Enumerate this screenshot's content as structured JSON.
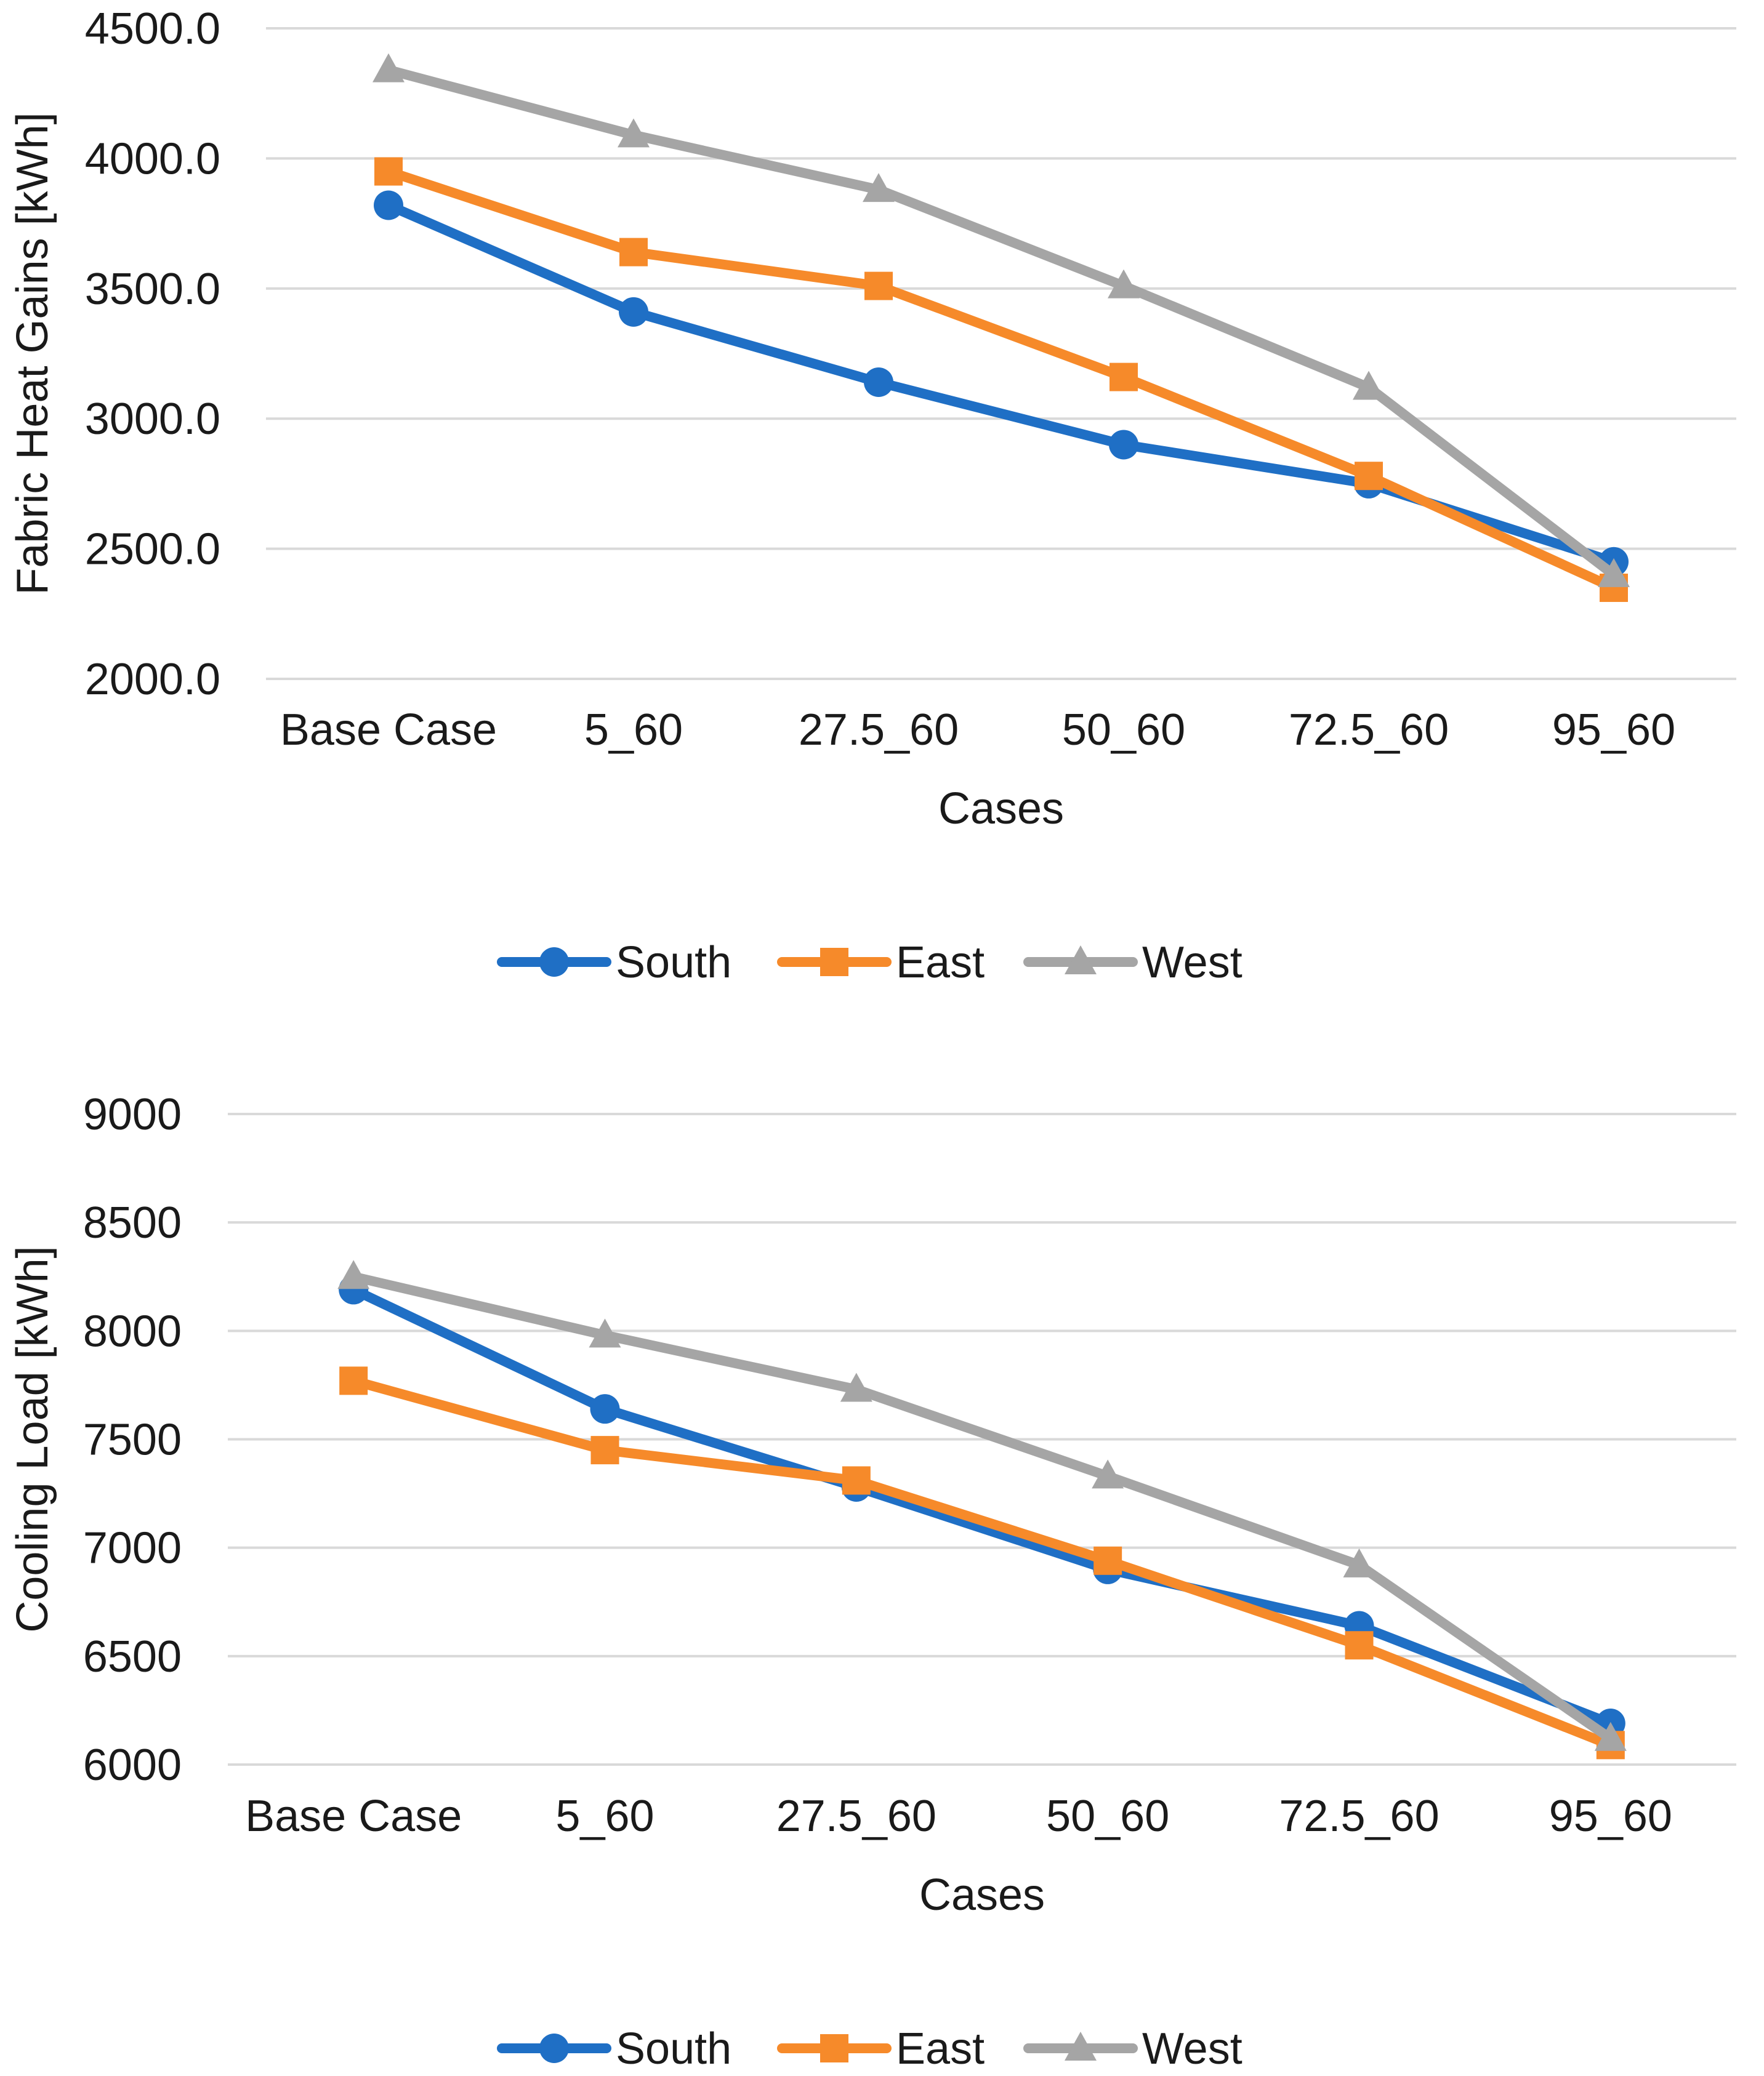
{
  "colors": {
    "south": "#1f6fc5",
    "east": "#f68a2a",
    "west": "#a5a5a5",
    "grid": "#d9d9d9"
  },
  "chart_data": [
    {
      "type": "line",
      "title": "",
      "xlabel": "Cases",
      "ylabel": "Fabric Heat Gains [kWh]",
      "ylim": [
        2000,
        4500
      ],
      "ytick_values": [
        2000,
        2500,
        3000,
        3500,
        4000,
        4500
      ],
      "ytick_labels": [
        "2000.0",
        "2500.0",
        "3000.0",
        "3500.0",
        "4000.0",
        "4500.0"
      ],
      "categories": [
        "Base Case",
        "5_60",
        "27.5_60",
        "50_60",
        "72.5_60",
        "95_60"
      ],
      "legend_position": "bottom",
      "series": [
        {
          "name": "South",
          "marker": "circle",
          "values": [
            3820,
            3410,
            3140,
            2900,
            2750,
            2450
          ]
        },
        {
          "name": "East",
          "marker": "square",
          "values": [
            3950,
            3640,
            3510,
            3160,
            2780,
            2350
          ]
        },
        {
          "name": "West",
          "marker": "triangle",
          "values": [
            4340,
            4090,
            3880,
            3510,
            3120,
            2400
          ]
        }
      ]
    },
    {
      "type": "line",
      "title": "",
      "xlabel": "Cases",
      "ylabel": "Cooling Load [kWh]",
      "ylim": [
        6000,
        9000
      ],
      "ytick_values": [
        6000,
        6500,
        7000,
        7500,
        8000,
        8500,
        9000
      ],
      "ytick_labels": [
        "6000",
        "6500",
        "7000",
        "7500",
        "8000",
        "8500",
        "9000"
      ],
      "categories": [
        "Base Case",
        "5_60",
        "27.5_60",
        "50_60",
        "72.5_60",
        "95_60"
      ],
      "legend_position": "bottom",
      "series": [
        {
          "name": "South",
          "marker": "circle",
          "values": [
            8190,
            7640,
            7280,
            6900,
            6640,
            6190
          ]
        },
        {
          "name": "East",
          "marker": "square",
          "values": [
            7770,
            7450,
            7310,
            6940,
            6550,
            6090
          ]
        },
        {
          "name": "West",
          "marker": "triangle",
          "values": [
            8250,
            7980,
            7730,
            7330,
            6920,
            6120
          ]
        }
      ]
    }
  ]
}
